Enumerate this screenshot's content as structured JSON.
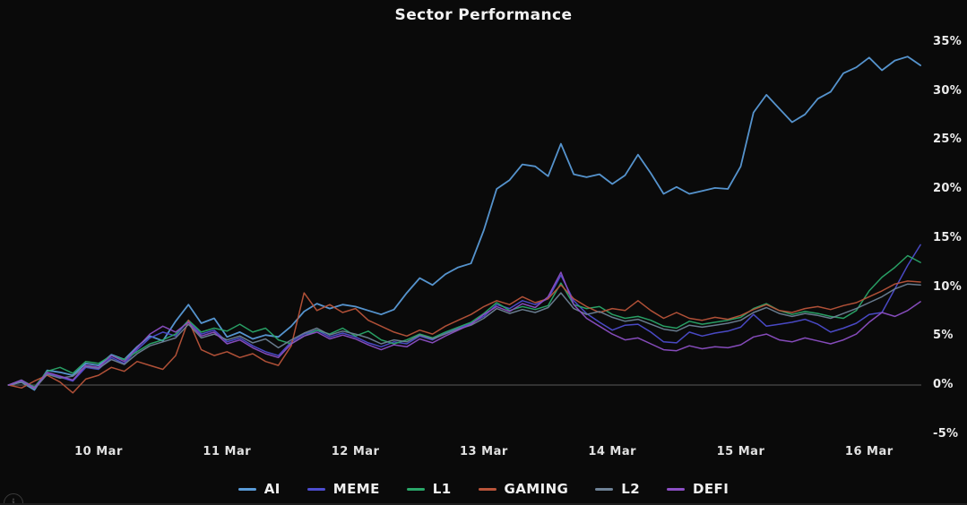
{
  "title": "Sector Performance",
  "info_icon_glyph": "i",
  "axis_colors": {
    "label": "#ececec",
    "zero_line": "#5a5a5a"
  },
  "chart_data": {
    "type": "line",
    "title": "Sector Performance",
    "xlabel": "",
    "ylabel": "",
    "x_unit": "days relative to 10 Mar",
    "x_start": -0.7,
    "x_step": 0.1,
    "x_ticks": [
      {
        "day": 0,
        "label": "10 Mar"
      },
      {
        "day": 1,
        "label": "11 Mar"
      },
      {
        "day": 2,
        "label": "12 Mar"
      },
      {
        "day": 3,
        "label": "13 Mar"
      },
      {
        "day": 4,
        "label": "14 Mar"
      },
      {
        "day": 5,
        "label": "15 Mar"
      },
      {
        "day": 6,
        "label": "16 Mar"
      }
    ],
    "y_ticks": [
      {
        "value": 35,
        "label": "35%"
      },
      {
        "value": 30,
        "label": "30%"
      },
      {
        "value": 25,
        "label": "25%"
      },
      {
        "value": 20,
        "label": "20%"
      },
      {
        "value": 15,
        "label": "15%"
      },
      {
        "value": 10,
        "label": "10%"
      },
      {
        "value": 5,
        "label": "5%"
      },
      {
        "value": 0,
        "label": "0%"
      },
      {
        "value": -5,
        "label": "-5%"
      }
    ],
    "ylim": [
      -5,
      35
    ],
    "grid": "zero-line-only",
    "legend_position": "bottom-center",
    "series": [
      {
        "name": "AI",
        "color": "#5a9bd8",
        "values": [
          0,
          0.3,
          -0.5,
          1.5,
          1.3,
          1.0,
          2.2,
          2.0,
          3.1,
          2.6,
          3.9,
          5.0,
          4.5,
          6.5,
          8.2,
          6.3,
          6.8,
          4.9,
          5.4,
          4.7,
          5.1,
          4.9,
          6.0,
          7.5,
          8.3,
          7.8,
          8.2,
          8.0,
          7.6,
          7.2,
          7.7,
          9.4,
          10.9,
          10.2,
          11.3,
          12.0,
          12.4,
          15.8,
          20.0,
          20.9,
          22.5,
          22.3,
          21.3,
          24.6,
          21.5,
          21.2,
          21.5,
          20.5,
          21.4,
          23.5,
          21.6,
          19.5,
          20.2,
          19.5,
          19.8,
          20.1,
          20.0,
          22.3,
          27.8,
          29.6,
          28.2,
          26.8,
          27.6,
          29.2,
          29.9,
          31.8,
          32.4,
          33.4,
          32.1,
          33.1,
          33.5,
          32.6
        ]
      },
      {
        "name": "MEME",
        "color": "#4d4dcf",
        "values": [
          0,
          0.4,
          -0.3,
          1.2,
          0.8,
          0.4,
          1.8,
          1.6,
          2.8,
          2.2,
          3.6,
          4.8,
          5.4,
          5.0,
          6.6,
          5.2,
          5.6,
          4.4,
          4.8,
          4.0,
          3.4,
          3.0,
          4.4,
          5.2,
          5.6,
          4.9,
          5.3,
          4.9,
          4.3,
          3.9,
          4.4,
          4.2,
          5.0,
          4.6,
          5.3,
          5.8,
          6.3,
          7.0,
          8.2,
          7.8,
          8.6,
          8.2,
          8.8,
          11.2,
          8.6,
          7.3,
          6.4,
          5.6,
          6.1,
          6.2,
          5.4,
          4.4,
          4.3,
          5.4,
          5.0,
          5.3,
          5.5,
          5.9,
          7.2,
          6.0,
          6.2,
          6.4,
          6.7,
          6.2,
          5.4,
          5.8,
          6.3,
          7.2,
          7.4,
          9.8,
          12.2,
          14.3
        ]
      },
      {
        "name": "L1",
        "color": "#2aa769",
        "values": [
          0,
          0.5,
          -0.2,
          1.4,
          1.8,
          1.2,
          2.4,
          2.2,
          3.0,
          2.6,
          3.4,
          4.2,
          4.6,
          5.2,
          6.6,
          5.4,
          5.8,
          5.5,
          6.2,
          5.4,
          5.8,
          4.6,
          4.2,
          5.0,
          5.6,
          5.2,
          5.8,
          5.0,
          5.5,
          4.6,
          4.2,
          4.6,
          5.2,
          4.8,
          5.4,
          5.9,
          6.4,
          7.3,
          8.4,
          7.6,
          8.0,
          7.7,
          8.1,
          10.4,
          8.2,
          7.8,
          8.0,
          7.2,
          6.8,
          7.0,
          6.6,
          6.0,
          5.8,
          6.5,
          6.2,
          6.4,
          6.6,
          6.9,
          7.8,
          8.3,
          7.6,
          7.2,
          7.5,
          7.3,
          7.0,
          6.8,
          7.6,
          9.6,
          11.0,
          12.0,
          13.2,
          12.5
        ]
      },
      {
        "name": "GAMING",
        "color": "#b9543a",
        "values": [
          0,
          -0.3,
          0.4,
          1.0,
          0.3,
          -0.8,
          0.6,
          1.0,
          1.8,
          1.4,
          2.4,
          2.0,
          1.6,
          3.0,
          6.6,
          3.6,
          3.0,
          3.4,
          2.8,
          3.2,
          2.4,
          2.0,
          4.0,
          9.4,
          7.6,
          8.2,
          7.4,
          7.8,
          6.6,
          6.0,
          5.4,
          5.0,
          5.6,
          5.2,
          6.0,
          6.6,
          7.2,
          8.0,
          8.6,
          8.2,
          9.0,
          8.4,
          8.8,
          10.2,
          8.8,
          8.0,
          7.4,
          7.8,
          7.6,
          8.6,
          7.6,
          6.8,
          7.4,
          6.8,
          6.6,
          6.9,
          6.7,
          7.1,
          7.7,
          8.2,
          7.6,
          7.4,
          7.8,
          8.0,
          7.7,
          8.1,
          8.4,
          9.0,
          9.6,
          10.3,
          10.6,
          10.5
        ]
      },
      {
        "name": "L2",
        "color": "#6e8296",
        "values": [
          0,
          0.3,
          -0.4,
          1.1,
          0.7,
          0.9,
          1.9,
          1.7,
          2.6,
          2.1,
          3.2,
          4.0,
          4.4,
          4.8,
          6.2,
          4.8,
          5.2,
          4.6,
          5.0,
          4.3,
          4.7,
          3.8,
          4.6,
          5.3,
          5.8,
          5.1,
          5.5,
          5.2,
          4.8,
          4.2,
          4.6,
          4.4,
          5.1,
          4.7,
          5.2,
          5.7,
          6.1,
          6.8,
          7.8,
          7.3,
          7.7,
          7.4,
          7.9,
          9.4,
          7.8,
          7.2,
          7.5,
          6.9,
          6.5,
          6.7,
          6.2,
          5.7,
          5.5,
          6.1,
          5.9,
          6.1,
          6.3,
          6.6,
          7.4,
          7.9,
          7.3,
          7.0,
          7.3,
          7.1,
          6.8,
          7.3,
          7.8,
          8.4,
          9.0,
          9.8,
          10.3,
          10.2
        ]
      },
      {
        "name": "DEFI",
        "color": "#8c4fc4",
        "values": [
          0,
          0.5,
          -0.3,
          1.3,
          0.9,
          0.5,
          2.0,
          1.8,
          3.0,
          2.4,
          3.8,
          5.2,
          6.0,
          5.4,
          6.4,
          5.0,
          5.4,
          4.2,
          4.6,
          3.8,
          3.2,
          2.8,
          4.2,
          5.0,
          5.4,
          4.7,
          5.1,
          4.7,
          4.1,
          3.6,
          4.1,
          3.9,
          4.7,
          4.3,
          5.0,
          5.6,
          6.2,
          7.2,
          8.0,
          7.5,
          8.3,
          7.9,
          9.0,
          11.5,
          8.2,
          6.8,
          6.0,
          5.2,
          4.6,
          4.8,
          4.2,
          3.6,
          3.5,
          4.0,
          3.7,
          3.9,
          3.8,
          4.1,
          4.9,
          5.2,
          4.6,
          4.4,
          4.8,
          4.5,
          4.2,
          4.6,
          5.2,
          6.4,
          7.4,
          7.0,
          7.6,
          8.5
        ]
      }
    ]
  }
}
